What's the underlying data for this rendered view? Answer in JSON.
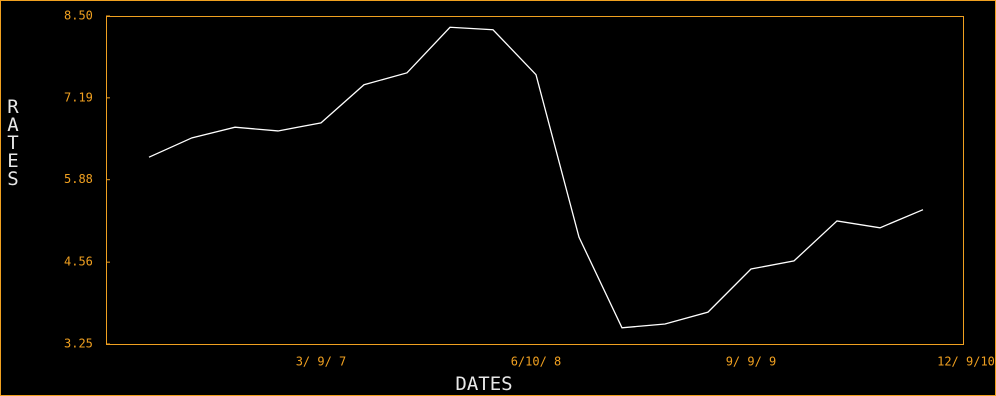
{
  "chart_data": {
    "type": "line",
    "xlabel": "DATES",
    "ylabel": "RATES",
    "categories": [
      null,
      null,
      null,
      null,
      "3/ 9/ 7",
      null,
      null,
      null,
      null,
      "6/10/ 8",
      null,
      null,
      null,
      null,
      "9/ 9/ 9",
      null,
      null,
      null,
      null,
      "12/ 9/10"
    ],
    "series": [
      {
        "color": "#ffffff",
        "values": [
          6.24,
          6.55,
          6.72,
          6.66,
          6.79,
          7.4,
          7.59,
          8.32,
          8.28,
          7.56,
          4.96,
          3.51,
          3.57,
          3.76,
          4.45,
          4.58,
          5.22,
          5.11,
          5.4,
          null
        ]
      }
    ],
    "ylim": [
      3.25,
      8.5
    ],
    "yticks": [
      3.25,
      4.56,
      5.88,
      7.19,
      {
        "value": 8.5,
        "label": "8.50"
      }
    ],
    "frame_color": "#f0a020",
    "grid": false
  }
}
